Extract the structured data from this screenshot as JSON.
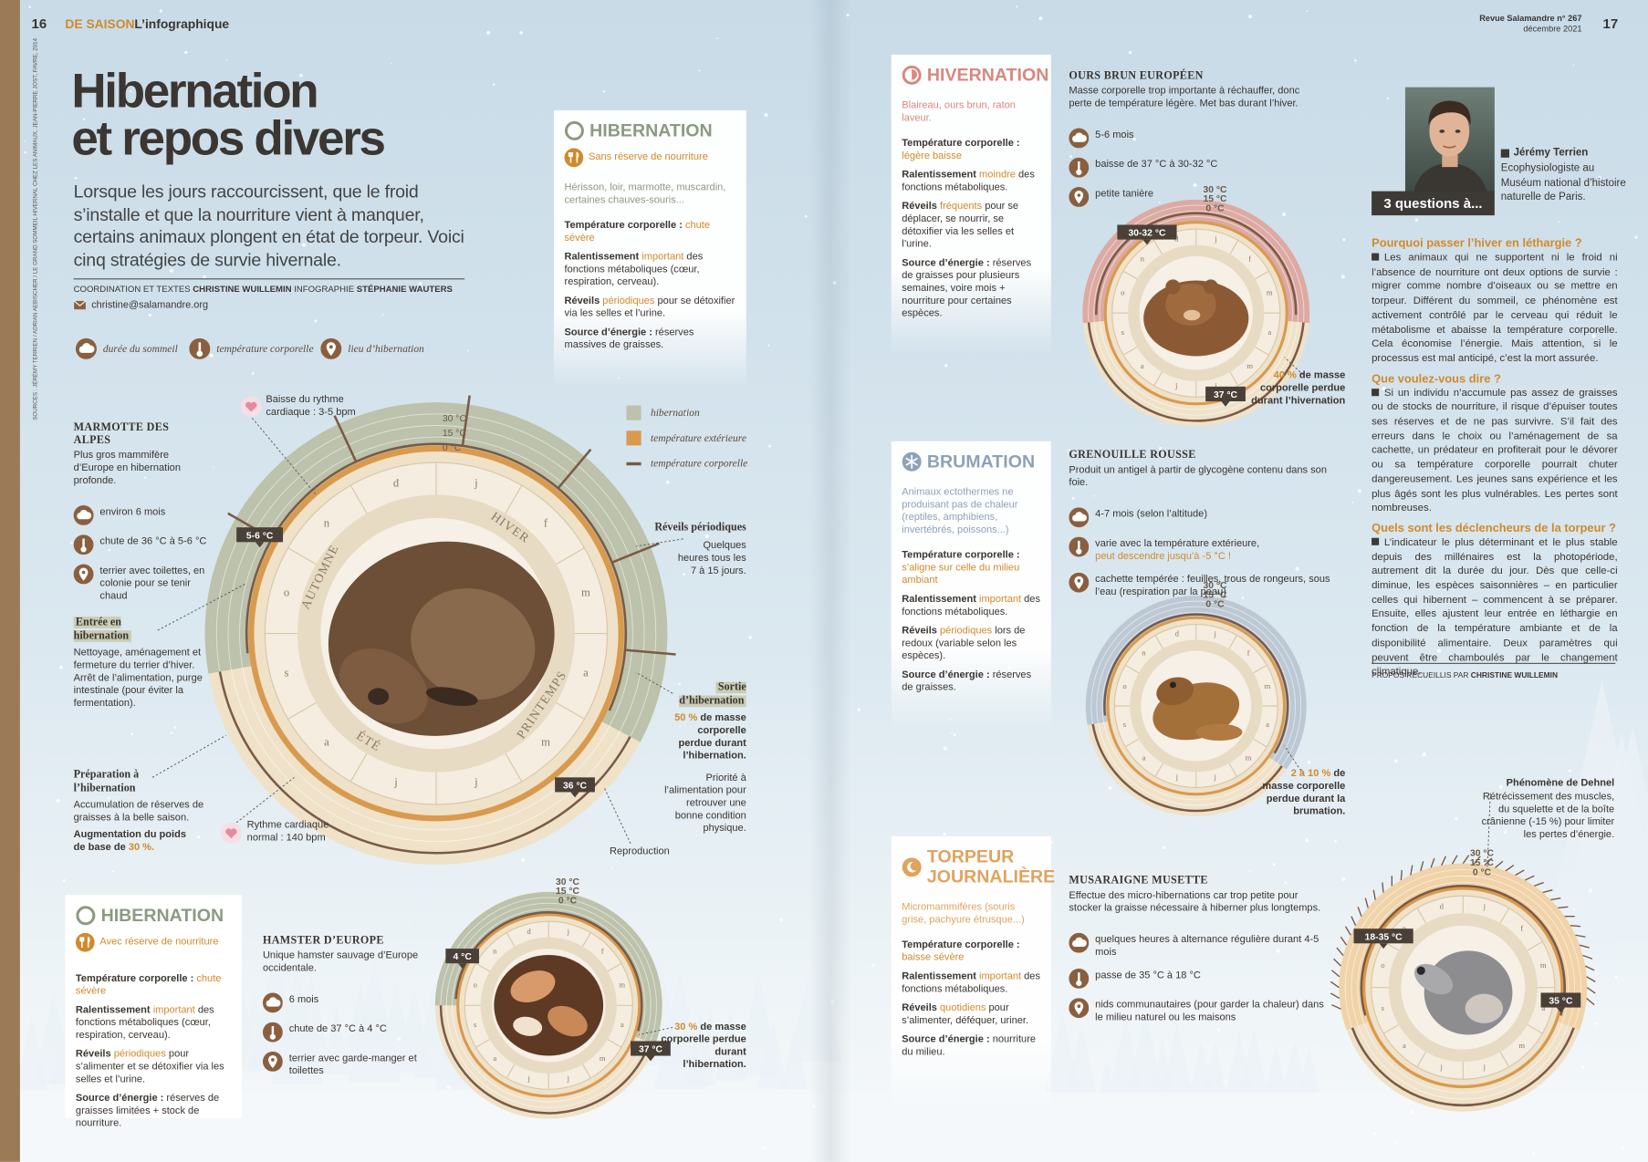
{
  "header": {
    "page_left": "16",
    "section": "DE SAISON",
    "rubric": "L’infographique",
    "magazine": "Revue Salamandre n° 267",
    "date": "décembre 2021",
    "page_right": "17"
  },
  "title": [
    "Hibernation",
    "et repos divers"
  ],
  "intro": "Lorsque les jours raccourcissent, que le froid s’installe et que la nourriture vient à manquer, certains animaux plongent en état de torpeur. Voici cinq stratégies de survie hivernale.",
  "credits": {
    "coordination": "COORDINATION ET TEXTES",
    "author": "CHRISTINE WUILLEMIN",
    "infographie": "INFOGRAPHIE",
    "designer": "STÉPHANIE WAUTERS",
    "email": "christine@salamandre.org"
  },
  "sources": "SOURCES : JÉRÉMY TERRIEN / ADRIAN AEBISCHER / LE GRAND SOMMEIL HIVERNAL CHEZ LES ANIMAUX, JEAN-PIERRE JOST, FAVRE, 2014",
  "icon_legend": [
    "durée du sommeil",
    "température corporelle",
    "lieu d’hibernation"
  ],
  "ring_legend": [
    "hibernation",
    "température extérieure",
    "température corporelle"
  ],
  "months": [
    "d",
    "j",
    "f",
    "m",
    "a",
    "m",
    "j",
    "j",
    "a",
    "s",
    "o",
    "n"
  ],
  "temp_scale": [
    "30 °C",
    "15 °C",
    "0 °C"
  ],
  "seasons": [
    "HIVER",
    "PRINTEMPS",
    "ÉTÉ",
    "AUTOMNE"
  ],
  "hibernation_a": {
    "title": "HIBERNATION",
    "subtitle": "Sans réserve de nourriture",
    "animals": "Hérisson, loir, marmotte, muscardin, certaines chauves-souris...",
    "fields": [
      {
        "label": "Température corporelle :",
        "highlight": "chute sévère"
      },
      {
        "label": "Ralentissement",
        "highlight": "important",
        "text": "des fonctions métaboliques (cœur, respiration, cerveau)."
      },
      {
        "label": "Réveils",
        "highlight": "périodiques",
        "text": "pour se détoxifier via les selles et l’urine."
      },
      {
        "label": "Source d’énergie :",
        "text": "réserves massives de graisses."
      }
    ]
  },
  "marmot": {
    "name": "MARMOTTE DES ALPES",
    "desc": "Plus gros mammifère d’Europe en hibernation profonde.",
    "facts": [
      {
        "text": "environ 6 mois"
      },
      {
        "text": "chute de 36 °C à 5-6 °C"
      },
      {
        "text": "terrier avec toilettes, en colonie pour se tenir chaud"
      }
    ],
    "flags": [
      "5-6 °C",
      "36 °C"
    ],
    "heart_top": "Baisse du rythme cardiaque : 3-5 bpm",
    "heart_bottom": "Rythme cardiaque normal : 140 bpm",
    "reveils": {
      "title": "Réveils périodiques",
      "text": "Quelques heures tous les 7 à 15 jours."
    },
    "entree": {
      "title": "Entrée en hibernation",
      "text": "Nettoyage, aménagement et fermeture du terrier d’hiver. Arrêt de l’alimentation, purge intestinale (pour éviter la fermentation)."
    },
    "preparation": {
      "title": "Préparation à l’hibernation",
      "text": "Accumulation de réserves de graisses à la belle saison.",
      "bold": "Augmentation du poids de base de",
      "highlight": "30 %."
    },
    "sortie": {
      "title": "Sortie d’hibernation",
      "highlight": "50 %",
      "text": "de masse corporelle perdue durant l’hibernation.",
      "note": "Priorité à l’alimentation pour retrouver une bonne condition physique."
    },
    "reproduction": "Reproduction"
  },
  "hibernation_b": {
    "title": "HIBERNATION",
    "subtitle": "Avec réserve de nourriture",
    "fields": [
      {
        "label": "Température corporelle :",
        "highlight": "chute sévère"
      },
      {
        "label": "Ralentissement",
        "highlight": "important",
        "text": "des fonctions métaboliques (cœur, respiration, cerveau)."
      },
      {
        "label": "Réveils",
        "highlight": "périodiques",
        "text": "pour s’alimenter et se détoxifier via les selles et l’urine."
      },
      {
        "label": "Source d’énergie :",
        "text": "réserves de graisses limitées + stock de nourriture."
      }
    ]
  },
  "hamster": {
    "name": "HAMSTER D’EUROPE",
    "desc": "Unique hamster sauvage d’Europe occidentale.",
    "facts": [
      {
        "text": "6 mois"
      },
      {
        "text": "chute de 37 °C à 4 °C"
      },
      {
        "text": "terrier avec garde-manger et toilettes"
      }
    ],
    "flags": [
      "4 °C",
      "37 °C"
    ],
    "loss": {
      "highlight": "30 %",
      "text": "de masse corporelle perdue durant l’hibernation."
    }
  },
  "hivernation": {
    "title": "HIVERNATION",
    "animals": "Blaireau, ours brun, raton laveur.",
    "fields": [
      {
        "label": "Température corporelle :",
        "highlight": "légère baisse"
      },
      {
        "label": "Ralentissement",
        "highlight": "moindre",
        "text": "des fonctions métaboliques."
      },
      {
        "label": "Réveils",
        "highlight": "fréquents",
        "text": "pour se déplacer, se nourrir, se détoxifier via les selles et l’urine."
      },
      {
        "label": "Source d’énergie :",
        "text": "réserves de graisses pour plusieurs semaines, voire mois + nourriture pour certaines espèces."
      }
    ]
  },
  "bear": {
    "name": "OURS BRUN EUROPÉEN",
    "desc": "Masse corporelle trop importante à réchauffer, donc perte de température légère. Met bas durant l’hiver.",
    "facts": [
      {
        "text": "5-6 mois"
      },
      {
        "text": "baisse de 37 °C à 30-32 °C"
      },
      {
        "text": "petite tanière"
      }
    ],
    "flags": [
      "30-32 °C",
      "37 °C"
    ],
    "loss": {
      "highlight": "40 %",
      "text": "de masse corporelle perdue durant l’hivernation"
    }
  },
  "brumation": {
    "title": "BRUMATION",
    "animals": "Animaux ectothermes ne produisant pas de chaleur (reptiles, amphibiens, invertébrés, poissons...)",
    "fields": [
      {
        "label": "Température corporelle :",
        "highlight": "s’aligne sur celle du milieu ambiant"
      },
      {
        "label": "Ralentissement",
        "highlight": "important",
        "text": "des fonctions métaboliques."
      },
      {
        "label": "Réveils",
        "highlight": "périodiques",
        "text": "lors de redoux (variable selon les espèces)."
      },
      {
        "label": "Source d’énergie :",
        "text": "réserves de graisses."
      }
    ]
  },
  "frog": {
    "name": "GRENOUILLE ROUSSE",
    "desc": "Produit un antigel à partir de glycogène contenu dans son foie.",
    "facts": [
      {
        "text": "4-7 mois (selon l’altitude)"
      },
      {
        "text": "varie avec la température extérieure,",
        "highlight": "peut descendre jusqu’à -5 °C !"
      },
      {
        "text": "cachette tempérée : feuilles, trous de rongeurs, sous l’eau (respiration par la peau)"
      }
    ],
    "loss": {
      "highlight": "2 à 10 %",
      "text": "de masse corporelle perdue durant la brumation."
    }
  },
  "torpeur": {
    "title": "TORPEUR JOURNALIÈRE",
    "animals": "Micromammifères (souris grise, pachyure étrusque...)",
    "fields": [
      {
        "label": "Température corporelle :",
        "highlight": "baisse sévère"
      },
      {
        "label": "Ralentissement",
        "highlight": "important",
        "text": "des fonctions métaboliques."
      },
      {
        "label": "Réveils",
        "highlight": "quotidiens",
        "text": "pour s’alimenter, déféquer, uriner."
      },
      {
        "label": "Source d’énergie :",
        "text": "nourriture du milieu."
      }
    ]
  },
  "shrew": {
    "name": "MUSARAIGNE MUSETTE",
    "desc": "Effectue des micro-hibernations car trop petite pour stocker la graisse nécessaire à hiberner plus longtemps.",
    "facts": [
      {
        "text": "quelques heures à alternance régulière durant 4-5 mois"
      },
      {
        "text": "passe de 35 °C à 18 °C"
      },
      {
        "text": "nids communautaires (pour garder la chaleur) dans le milieu naturel ou les maisons"
      }
    ],
    "flags": [
      "18-35 °C",
      "35 °C"
    ],
    "dehnel": {
      "title": "Phénomène de Dehnel",
      "text": "Rétrécissement des muscles, du squelette et de la boîte crânienne (-15 %) pour limiter les pertes d’énergie."
    }
  },
  "interview": {
    "badge": "3 questions à...",
    "name": "Jérémy Terrien",
    "role": "Ecophysiologiste au Muséum national d’histoire naturelle de Paris.",
    "qa": [
      {
        "q": "Pourquoi passer l’hiver en léthargie ?",
        "a": "Les animaux qui ne supportent ni le froid ni l’absence de nourriture ont deux options de survie : migrer comme nombre d’oiseaux ou se mettre en torpeur. Différent du sommeil, ce phénomène est activement contrôlé par le cerveau qui réduit le métabolisme et abaisse la température corporelle. Cela économise l’énergie. Mais attention, si le processus est mal anticipé, c’est la mort assurée."
      },
      {
        "q": "Que voulez-vous dire ?",
        "a": "Si un individu n’accumule pas assez de graisses ou de stocks de nourriture, il risque d’épuiser toutes ses réserves et de ne pas survivre. S’il fait des erreurs dans le choix ou l’aménagement de sa cachette, un prédateur en profiterait pour le dévorer ou sa température corporelle pourrait chuter dangereusement. Les jeunes sans expérience et les plus âgés sont les plus vulnérables. Les pertes sont nombreuses."
      },
      {
        "q": "Quels sont les déclencheurs de la torpeur ?",
        "a": "L’indicateur le plus déterminant et le plus stable depuis des millénaires est la photopériode, autrement dit la durée du jour. Dès que celle-ci diminue, les espèces saisonnières – en particulier celles qui hibernent – commencent à se préparer. Ensuite, elles ajustent leur entrée en léthargie en fonction de la température ambiante et de la disponibilité alimentaire. Deux paramètres qui peuvent être chamboulés par le changement climatique."
      }
    ],
    "credit": "PROPOS RECUEILLIS PAR",
    "credit_name": "CHRISTINE WUILLEMIN"
  }
}
